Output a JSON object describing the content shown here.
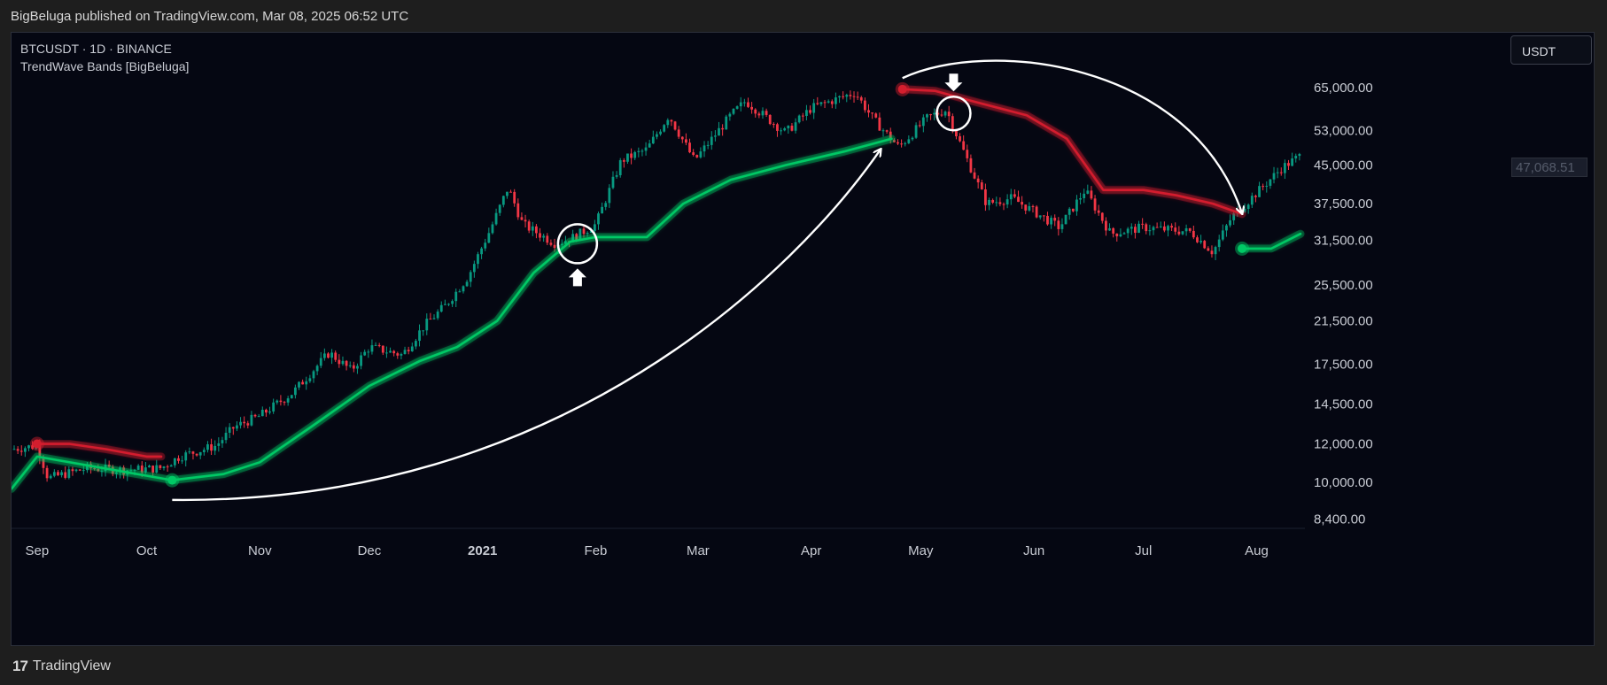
{
  "header": {
    "publisher_text": "BigBeluga published on TradingView.com, Mar 08, 2025 06:52 UTC"
  },
  "legend": {
    "symbol_line": "BTCUSDT · 1D · BINANCE",
    "indicator": "TrendWave Bands [BigBeluga]"
  },
  "currency_button": "USDT",
  "current_price_label": "47,068.51",
  "footer": {
    "brand": "TradingView",
    "logo_icon": "tradingview-logo-icon"
  },
  "colors": {
    "up": "#089981",
    "down": "#f23645",
    "band_green": "#00c965",
    "band_red": "#d41e2e",
    "annotation": "#ffffff",
    "background": "#050712"
  },
  "chart_data": {
    "type": "candlestick",
    "x_axis": {
      "labels": [
        "Sep",
        "Oct",
        "Nov",
        "Dec",
        "2021",
        "Feb",
        "Mar",
        "Apr",
        "May",
        "Jun",
        "Jul",
        "Aug"
      ]
    },
    "y_axis": {
      "scale": "log",
      "ticks": [
        "65,000.00",
        "53,000.00",
        "45,000.00",
        "37,500.00",
        "31,500.00",
        "25,500.00",
        "21,500.00",
        "17,500.00",
        "14,500.00",
        "12,000.00",
        "10,000.00",
        "8,400.00"
      ]
    },
    "series": [
      {
        "kind": "price_close_approx",
        "points": [
          [
            "2020-08-25",
            11700
          ],
          [
            "2020-09-01",
            11900
          ],
          [
            "2020-09-04",
            10200
          ],
          [
            "2020-09-15",
            10700
          ],
          [
            "2020-09-25",
            10600
          ],
          [
            "2020-10-05",
            10700
          ],
          [
            "2020-10-10",
            11300
          ],
          [
            "2020-10-20",
            11900
          ],
          [
            "2020-10-25",
            13000
          ],
          [
            "2020-11-01",
            13700
          ],
          [
            "2020-11-10",
            15300
          ],
          [
            "2020-11-20",
            18500
          ],
          [
            "2020-11-26",
            17000
          ],
          [
            "2020-12-01",
            19000
          ],
          [
            "2020-12-10",
            18300
          ],
          [
            "2020-12-16",
            21000
          ],
          [
            "2020-12-22",
            23200
          ],
          [
            "2020-12-28",
            26500
          ],
          [
            "2021-01-03",
            33000
          ],
          [
            "2021-01-08",
            40500
          ],
          [
            "2021-01-12",
            34000
          ],
          [
            "2021-01-21",
            31000
          ],
          [
            "2021-01-26",
            32000
          ],
          [
            "2021-02-01",
            34000
          ],
          [
            "2021-02-08",
            46000
          ],
          [
            "2021-02-15",
            48500
          ],
          [
            "2021-02-21",
            57000
          ],
          [
            "2021-02-28",
            46000
          ],
          [
            "2021-03-10",
            57000
          ],
          [
            "2021-03-14",
            61000
          ],
          [
            "2021-03-25",
            52500
          ],
          [
            "2021-04-01",
            59000
          ],
          [
            "2021-04-13",
            63500
          ],
          [
            "2021-04-18",
            56000
          ],
          [
            "2021-04-25",
            49000
          ],
          [
            "2021-05-03",
            56500
          ],
          [
            "2021-05-08",
            58500
          ],
          [
            "2021-05-12",
            49500
          ],
          [
            "2021-05-19",
            37500
          ],
          [
            "2021-05-26",
            38500
          ],
          [
            "2021-06-08",
            33500
          ],
          [
            "2021-06-15",
            40000
          ],
          [
            "2021-06-22",
            32500
          ],
          [
            "2021-07-01",
            33500
          ],
          [
            "2021-07-14",
            32800
          ],
          [
            "2021-07-20",
            29800
          ],
          [
            "2021-07-25",
            35000
          ],
          [
            "2021-08-01",
            39500
          ],
          [
            "2021-08-08",
            44500
          ],
          [
            "2021-08-13",
            47068.51
          ]
        ]
      },
      {
        "kind": "band_red_1",
        "points": [
          [
            "2020-09-01",
            12000
          ],
          [
            "2020-09-10",
            12000
          ],
          [
            "2020-09-20",
            11700
          ],
          [
            "2020-10-01",
            11300
          ],
          [
            "2020-10-05",
            11300
          ]
        ]
      },
      {
        "kind": "band_green_1",
        "points": [
          [
            "2020-08-25",
            9700
          ],
          [
            "2020-09-01",
            11300
          ],
          [
            "2020-10-08",
            10100
          ],
          [
            "2020-10-22",
            10400
          ],
          [
            "2020-11-01",
            11000
          ],
          [
            "2020-11-15",
            13000
          ],
          [
            "2020-12-01",
            15800
          ],
          [
            "2020-12-15",
            17800
          ],
          [
            "2020-12-25",
            19000
          ],
          [
            "2021-01-05",
            21500
          ],
          [
            "2021-01-15",
            27000
          ],
          [
            "2021-01-25",
            31300
          ],
          [
            "2021-02-01",
            32000
          ],
          [
            "2021-02-15",
            32000
          ],
          [
            "2021-02-25",
            37500
          ],
          [
            "2021-03-10",
            42000
          ],
          [
            "2021-03-25",
            45000
          ],
          [
            "2021-04-10",
            48000
          ],
          [
            "2021-04-23",
            51000
          ]
        ]
      },
      {
        "kind": "band_red_2",
        "points": [
          [
            "2021-04-26",
            64500
          ],
          [
            "2021-05-05",
            64000
          ],
          [
            "2021-05-15",
            61000
          ],
          [
            "2021-05-30",
            57000
          ],
          [
            "2021-06-10",
            51000
          ],
          [
            "2021-06-20",
            40000
          ],
          [
            "2021-07-01",
            40000
          ],
          [
            "2021-07-10",
            39000
          ],
          [
            "2021-07-20",
            37500
          ],
          [
            "2021-07-28",
            35700
          ]
        ]
      },
      {
        "kind": "band_green_2",
        "points": [
          [
            "2021-07-28",
            30300
          ],
          [
            "2021-08-05",
            30300
          ],
          [
            "2021-08-13",
            32500
          ]
        ]
      }
    ],
    "markers": [
      {
        "type": "signal_dot",
        "color": "red",
        "date": "2020-09-01",
        "value": 12000
      },
      {
        "type": "signal_dot",
        "color": "green",
        "date": "2020-10-08",
        "value": 10100
      },
      {
        "type": "signal_dot",
        "color": "red",
        "date": "2021-04-26",
        "value": 64500
      },
      {
        "type": "signal_dot",
        "color": "green",
        "date": "2021-07-28",
        "value": 30300
      }
    ],
    "annotations": [
      {
        "type": "circle",
        "date": "2021-01-27",
        "value": 31000,
        "arrow": "up"
      },
      {
        "type": "circle",
        "date": "2021-05-10",
        "value": 57500,
        "arrow": "down"
      },
      {
        "type": "curved-arrow",
        "from": [
          "2020-10-08",
          9200
        ],
        "to": [
          "2021-04-20",
          48500
        ]
      },
      {
        "type": "curved-arrow",
        "from": [
          "2021-04-26",
          68000
        ],
        "to": [
          "2021-07-28",
          35800
        ]
      }
    ]
  }
}
